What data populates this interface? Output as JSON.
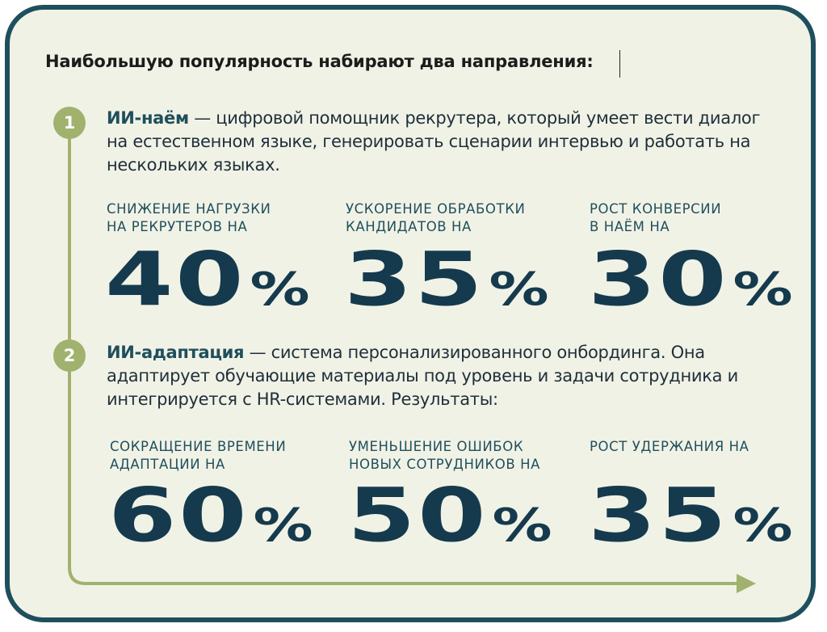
{
  "heading": "Наибольшую популярность набирают два направления:",
  "sections": [
    {
      "number": "1",
      "title": "ИИ-наём",
      "description": " — цифровой помощник рекрутера, который умеет вести диалог на естественном языке, генерировать сценарии интервью и работать на нескольких языках.",
      "stats": [
        {
          "label": "СНИЖЕНИЕ НАГРУЗКИ\nНА РЕКРУТЕРОВ НА",
          "value": "40",
          "unit": "%"
        },
        {
          "label": "УСКОРЕНИЕ ОБРАБОТКИ\nКАНДИДАТОВ НА",
          "value": "35",
          "unit": "%"
        },
        {
          "label": "РОСТ КОНВЕРСИИ\nВ НАЁМ НА",
          "value": "30",
          "unit": "%"
        }
      ]
    },
    {
      "number": "2",
      "title": "ИИ-адаптация",
      "description": " — система персонализированного онбординга. Она адаптирует обучающие материалы под уровень и задачи сотрудника и интегрируется с HR-системами. Результаты:",
      "stats": [
        {
          "label": "СОКРАЩЕНИЕ ВРЕМЕНИ\nАДАПТАЦИИ НА",
          "value": "60",
          "unit": "%"
        },
        {
          "label": "УМЕНЬШЕНИЕ ОШИБОК\nНОВЫХ СОТРУДНИКОВ НА",
          "value": "50",
          "unit": "%"
        },
        {
          "label": "РОСТ УДЕРЖАНИЯ НА",
          "value": "35",
          "unit": "%"
        }
      ]
    }
  ],
  "colors": {
    "border": "#1f4f5d",
    "background": "#f1f2e6",
    "accent": "#a0b26e",
    "numbers": "#153a4d"
  }
}
